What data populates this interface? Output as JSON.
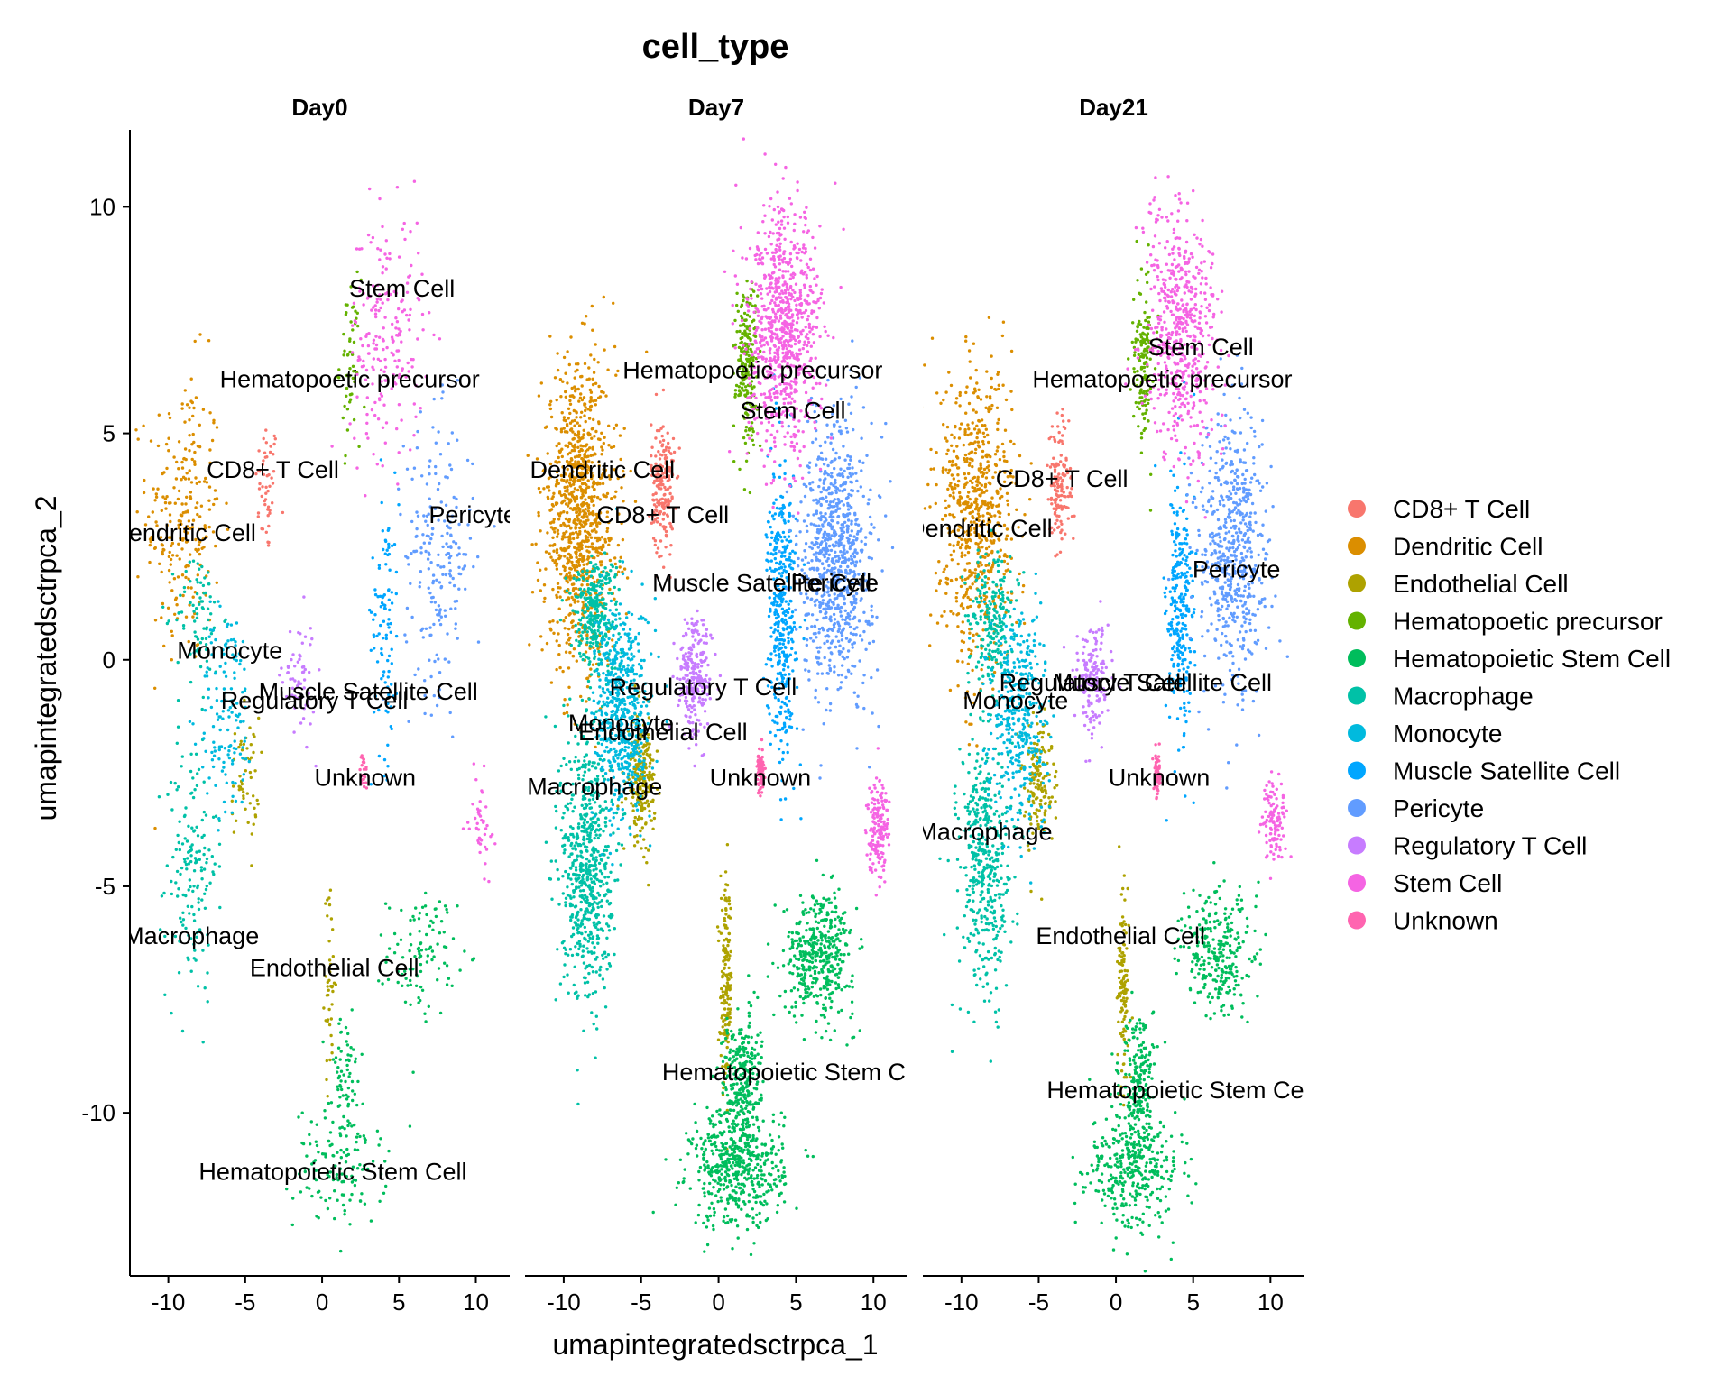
{
  "chart_data": {
    "type": "scatter",
    "title": "cell_type",
    "xlabel": "umapintegratedsctrpca_1",
    "ylabel": "umapintegratedsctrpca_2",
    "xlim": [
      -12.5,
      12.2
    ],
    "ylim": [
      -13.6,
      11.7
    ],
    "x_ticks": [
      -10,
      -5,
      0,
      5,
      10
    ],
    "x_tick_labels": [
      "-10",
      "-5",
      "0",
      "5",
      "10"
    ],
    "y_ticks": [
      -10,
      -5,
      0,
      5,
      10
    ],
    "y_tick_labels": [
      "-10",
      "-5",
      "0",
      "5",
      "10"
    ],
    "grid": false,
    "legend_position": "right",
    "panels": [
      "Day0",
      "Day7",
      "Day21"
    ],
    "series": [
      {
        "name": "CD8+ T Cell",
        "color": "#F8766D",
        "clusters": [
          {
            "x": -3.6,
            "y": 3.8,
            "sx": 0.5,
            "sy": 1.0
          }
        ]
      },
      {
        "name": "Dendritic Cell",
        "color": "#DB8E00",
        "clusters": [
          {
            "x": -9.0,
            "y": 3.2,
            "sx": 1.6,
            "sy": 2.2
          }
        ]
      },
      {
        "name": "Endothelial Cell",
        "color": "#AEA200",
        "clusters": [
          {
            "x": 0.5,
            "y": -7.2,
            "sx": 0.25,
            "sy": 1.4
          },
          {
            "x": -5.0,
            "y": -2.6,
            "sx": 0.6,
            "sy": 0.9
          }
        ]
      },
      {
        "name": "Hematopoetic precursor",
        "color": "#64B200",
        "clusters": [
          {
            "x": 1.8,
            "y": 6.6,
            "sx": 0.45,
            "sy": 1.2
          }
        ]
      },
      {
        "name": "Hematopoietic Stem Cell",
        "color": "#00BD5C",
        "clusters": [
          {
            "x": 1.2,
            "y": -11.2,
            "sx": 2.0,
            "sy": 0.9
          },
          {
            "x": 6.5,
            "y": -6.5,
            "sx": 1.5,
            "sy": 0.9
          },
          {
            "x": 1.5,
            "y": -9.2,
            "sx": 0.8,
            "sy": 0.9
          }
        ]
      },
      {
        "name": "Macrophage",
        "color": "#00C1A7",
        "clusters": [
          {
            "x": -8.5,
            "y": -4.5,
            "sx": 1.1,
            "sy": 2.0
          },
          {
            "x": -8.0,
            "y": 1.0,
            "sx": 1.0,
            "sy": 0.9
          }
        ]
      },
      {
        "name": "Monocyte",
        "color": "#00BADE",
        "clusters": [
          {
            "x": -6.2,
            "y": -1.2,
            "sx": 1.2,
            "sy": 1.6
          }
        ]
      },
      {
        "name": "Muscle Satellite Cell",
        "color": "#00A6FF",
        "clusters": [
          {
            "x": 4.1,
            "y": 1.0,
            "sx": 0.6,
            "sy": 2.1
          }
        ]
      },
      {
        "name": "Pericyte",
        "color": "#619CFF",
        "clusters": [
          {
            "x": 7.6,
            "y": 2.3,
            "sx": 1.5,
            "sy": 2.0
          }
        ]
      },
      {
        "name": "Regulatory T Cell",
        "color": "#C77CFF",
        "clusters": [
          {
            "x": -1.5,
            "y": -0.4,
            "sx": 0.7,
            "sy": 0.9
          }
        ]
      },
      {
        "name": "Stem Cell",
        "color": "#F564E3",
        "clusters": [
          {
            "x": 4.2,
            "y": 7.2,
            "sx": 1.6,
            "sy": 1.8
          },
          {
            "x": 10.3,
            "y": -3.6,
            "sx": 0.5,
            "sy": 0.7
          }
        ]
      },
      {
        "name": "Unknown",
        "color": "#FF64B0",
        "clusters": [
          {
            "x": 2.7,
            "y": -2.5,
            "sx": 0.15,
            "sy": 0.3
          }
        ]
      }
    ],
    "panel_point_density": {
      "Day0": 0.4,
      "Day7": 1.6,
      "Day21": 1.1
    },
    "cluster_labels": {
      "Day0": [
        {
          "text": "Stem Cell",
          "x": 5.2,
          "y": 8.2
        },
        {
          "text": "Hematopoetic precursor",
          "x": 1.8,
          "y": 6.2
        },
        {
          "text": "CD8+ T Cell",
          "x": -3.2,
          "y": 4.2
        },
        {
          "text": "Dendritic Cell",
          "x": -9.0,
          "y": 2.8
        },
        {
          "text": "Pericyte",
          "x": 9.8,
          "y": 3.2
        },
        {
          "text": "Monocyte",
          "x": -6.0,
          "y": 0.2
        },
        {
          "text": "Muscle Satellite Cell",
          "x": 3.0,
          "y": -0.7
        },
        {
          "text": "Regulatory T Cell",
          "x": -0.5,
          "y": -0.9
        },
        {
          "text": "Unknown",
          "x": 2.8,
          "y": -2.6
        },
        {
          "text": "Macrophage",
          "x": -8.5,
          "y": -6.1
        },
        {
          "text": "Endothelial Cell",
          "x": 0.8,
          "y": -6.8
        },
        {
          "text": "Hematopoietic Stem Cell",
          "x": 0.7,
          "y": -11.3
        }
      ],
      "Day7": [
        {
          "text": "Hematopoetic precursor",
          "x": 2.2,
          "y": 6.4
        },
        {
          "text": "Stem Cell",
          "x": 4.8,
          "y": 5.5
        },
        {
          "text": "Dendritic Cell",
          "x": -7.5,
          "y": 4.2
        },
        {
          "text": "CD8+ T Cell",
          "x": -3.6,
          "y": 3.2
        },
        {
          "text": "Muscle Satellite Cell",
          "x": 2.8,
          "y": 1.7
        },
        {
          "text": "Pericyte",
          "x": 7.5,
          "y": 1.7
        },
        {
          "text": "Regulatory T Cell",
          "x": -1.0,
          "y": -0.6
        },
        {
          "text": "Monocyte",
          "x": -6.3,
          "y": -1.4
        },
        {
          "text": "Endothelial Cell",
          "x": -3.6,
          "y": -1.6
        },
        {
          "text": "Unknown",
          "x": 2.7,
          "y": -2.6
        },
        {
          "text": "Macrophage",
          "x": -8.0,
          "y": -2.8
        },
        {
          "text": "Hematopoietic Stem Cell",
          "x": 5.0,
          "y": -9.1
        }
      ],
      "Day21": [
        {
          "text": "Stem Cell",
          "x": 5.5,
          "y": 6.9
        },
        {
          "text": "Hematopoetic precursor",
          "x": 3.0,
          "y": 6.2
        },
        {
          "text": "CD8+ T Cell",
          "x": -3.5,
          "y": 4.0
        },
        {
          "text": "Dendritic Cell",
          "x": -8.8,
          "y": 2.9
        },
        {
          "text": "Pericyte",
          "x": 7.8,
          "y": 2.0
        },
        {
          "text": "Muscle Satellite Cell",
          "x": 3.0,
          "y": -0.5
        },
        {
          "text": "Regulatory T Cell",
          "x": -1.5,
          "y": -0.5
        },
        {
          "text": "Monocyte",
          "x": -6.5,
          "y": -0.9
        },
        {
          "text": "Unknown",
          "x": 2.8,
          "y": -2.6
        },
        {
          "text": "Macrophage",
          "x": -8.5,
          "y": -3.8
        },
        {
          "text": "Endothelial Cell",
          "x": 0.3,
          "y": -6.1
        },
        {
          "text": "Hematopoietic Stem Cell",
          "x": 4.2,
          "y": -9.5
        }
      ]
    }
  }
}
